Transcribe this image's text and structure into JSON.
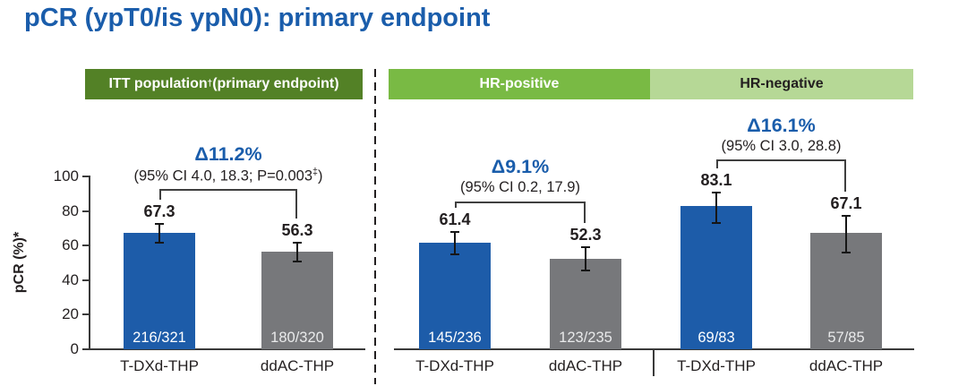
{
  "title": "pCR (ypT0/is ypN0): primary endpoint",
  "headers": {
    "itt": {
      "pre": "ITT population",
      "sup": "†",
      "post": " (primary endpoint)"
    },
    "hr_positive": "HR-positive",
    "hr_negative": "HR-negative"
  },
  "axis": {
    "ylabel": "pCR (%)*",
    "ticks": [
      0,
      20,
      40,
      60,
      80,
      100
    ],
    "ymax": 100
  },
  "colors": {
    "title_blue": "#1a5dab",
    "bar_blue": "#1d5ca9",
    "bar_gray": "#77787b",
    "header_dark_green": "#538126",
    "header_mid_green": "#79ba44",
    "header_light_green": "#b6d896",
    "delta_blue": "#1a5dab",
    "bar_text_on_blue": "#ffffff",
    "bar_text_on_gray": "#e9eaeb",
    "axis_black": "#231f20"
  },
  "chart_data": {
    "type": "bar",
    "ylabel": "pCR (%)*",
    "ylim": [
      0,
      100
    ],
    "grid": false,
    "panels": [
      {
        "name": "ITT population (primary endpoint)",
        "delta": "Δ11.2%",
        "ci": {
          "pre": "(95% CI 4.0, 18.3; P=0.003",
          "sup": "‡",
          "post": ")"
        },
        "bars": [
          {
            "group": "T-DXd-THP",
            "value": 67.3,
            "fraction": "216/321",
            "color": "blue",
            "err_up": 5.1,
            "err_down": 5.4
          },
          {
            "group": "ddAC-THP",
            "value": 56.3,
            "fraction": "180/320",
            "color": "gray",
            "err_up": 5.5,
            "err_down": 5.7
          }
        ]
      },
      {
        "name": "HR-positive",
        "delta": "Δ9.1%",
        "ci": {
          "pre": "(95% CI 0.2, 17.9",
          "sup": "",
          "post": ")"
        },
        "bars": [
          {
            "group": "T-DXd-THP",
            "value": 61.4,
            "fraction": "145/236",
            "color": "blue",
            "err_up": 6.3,
            "err_down": 6.5
          },
          {
            "group": "ddAC-THP",
            "value": 52.3,
            "fraction": "123/235",
            "color": "gray",
            "err_up": 6.6,
            "err_down": 6.5
          }
        ]
      },
      {
        "name": "HR-negative",
        "delta": "Δ16.1%",
        "ci": {
          "pre": "(95% CI 3.0, 28.8",
          "sup": "",
          "post": ")"
        },
        "bars": [
          {
            "group": "T-DXd-THP",
            "value": 83.1,
            "fraction": "69/83",
            "color": "blue",
            "err_up": 7.4,
            "err_down": 9.8
          },
          {
            "group": "ddAC-THP",
            "value": 67.1,
            "fraction": "57/85",
            "color": "gray",
            "err_up": 9.9,
            "err_down": 11.1
          }
        ]
      }
    ]
  }
}
